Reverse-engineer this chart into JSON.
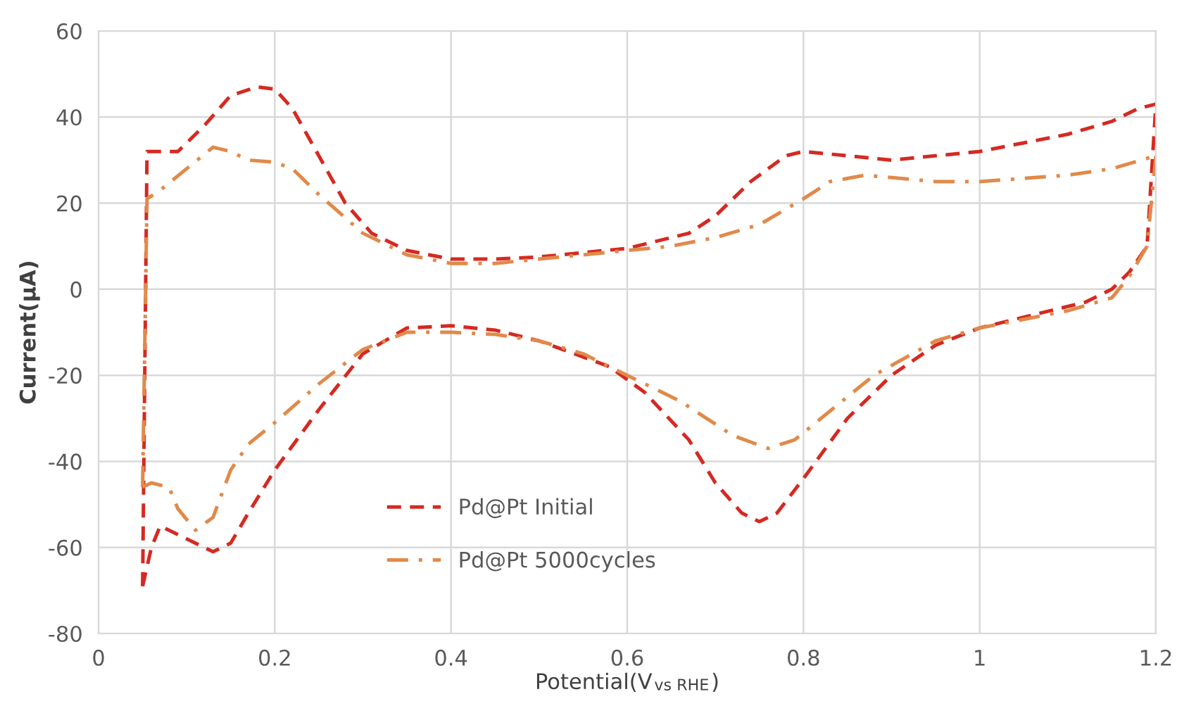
{
  "chart_data": {
    "type": "line",
    "xlabel": "Potential(V$_{vs RHE}$)",
    "ylabel": "Current(μA)",
    "xlim": [
      0,
      1.2
    ],
    "xticks": [
      0,
      0.2,
      0.4,
      0.6,
      0.8,
      1,
      1.2
    ],
    "ylim": [
      -80,
      60
    ],
    "yticks": [
      -80,
      -60,
      -40,
      -20,
      0,
      20,
      40,
      60
    ],
    "grid": true,
    "legend": "bottom",
    "marker": "none",
    "series": [
      {
        "name": "Pd@Pt Initial",
        "color": "#d42a22",
        "line_style": "dashed",
        "x": [
          0.05,
          0.055,
          0.07,
          0.09,
          0.12,
          0.15,
          0.18,
          0.2,
          0.22,
          0.25,
          0.28,
          0.31,
          0.35,
          0.4,
          0.45,
          0.5,
          0.55,
          0.6,
          0.67,
          0.7,
          0.74,
          0.78,
          0.8,
          0.85,
          0.9,
          0.95,
          1.0,
          1.05,
          1.1,
          1.15,
          1.18,
          1.2
        ],
        "values": [
          -69,
          32,
          32,
          32,
          38,
          45,
          47,
          46.5,
          42,
          31,
          20,
          13,
          9,
          7,
          7,
          7.5,
          8.5,
          9.5,
          13,
          17,
          25,
          31,
          32,
          31,
          30,
          31,
          32,
          34,
          36,
          39,
          42,
          43
        ]
      },
      {
        "color": "#d42a22",
        "line_style": "dashed",
        "x": [
          0.05,
          0.06,
          0.07,
          0.08,
          0.1,
          0.13,
          0.15,
          0.17,
          0.2,
          0.25,
          0.3,
          0.35,
          0.4,
          0.45,
          0.5,
          0.58,
          0.62,
          0.67,
          0.7,
          0.73,
          0.75,
          0.77,
          0.8,
          0.85,
          0.9,
          0.95,
          1.0,
          1.08,
          1.12,
          1.15,
          1.17,
          1.19,
          1.2
        ],
        "values": [
          -69,
          -60,
          -55,
          -56,
          -58,
          -61,
          -59,
          -52,
          -42,
          -28,
          -15,
          -9,
          -8.5,
          -9.5,
          -12,
          -18,
          -24,
          -35,
          -45,
          -52,
          -54,
          -52,
          -44,
          -30,
          -20,
          -13,
          -9,
          -5,
          -3,
          0,
          4,
          10,
          43
        ]
      },
      {
        "name": "Pd@Pt 5000cycles",
        "color": "#e08a4a",
        "line_style": "dashdot",
        "x": [
          0.05,
          0.055,
          0.07,
          0.1,
          0.13,
          0.15,
          0.17,
          0.2,
          0.22,
          0.25,
          0.3,
          0.35,
          0.4,
          0.45,
          0.5,
          0.55,
          0.6,
          0.65,
          0.7,
          0.75,
          0.8,
          0.83,
          0.87,
          0.95,
          1.0,
          1.1,
          1.15,
          1.2
        ],
        "values": [
          -46,
          21,
          23,
          28,
          33,
          32,
          30,
          29.5,
          28,
          22,
          13,
          8,
          6,
          6,
          7,
          8,
          9,
          10,
          12,
          15,
          21,
          25,
          26.5,
          25,
          25,
          26.5,
          28,
          31
        ]
      },
      {
        "color": "#e08a4a",
        "line_style": "dashdot",
        "x": [
          0.05,
          0.06,
          0.08,
          0.09,
          0.11,
          0.13,
          0.15,
          0.17,
          0.2,
          0.25,
          0.3,
          0.35,
          0.4,
          0.45,
          0.5,
          0.55,
          0.6,
          0.66,
          0.72,
          0.76,
          0.79,
          0.82,
          0.88,
          0.95,
          1.0,
          1.1,
          1.15,
          1.17,
          1.19,
          1.2
        ],
        "values": [
          -46,
          -45,
          -46,
          -51,
          -56,
          -53,
          -42,
          -36,
          -31,
          -22,
          -14,
          -10,
          -10,
          -10.5,
          -12,
          -15,
          -20,
          -26,
          -34,
          -37,
          -35,
          -30,
          -20,
          -12,
          -9,
          -5,
          -2,
          3,
          10,
          31
        ]
      }
    ]
  }
}
